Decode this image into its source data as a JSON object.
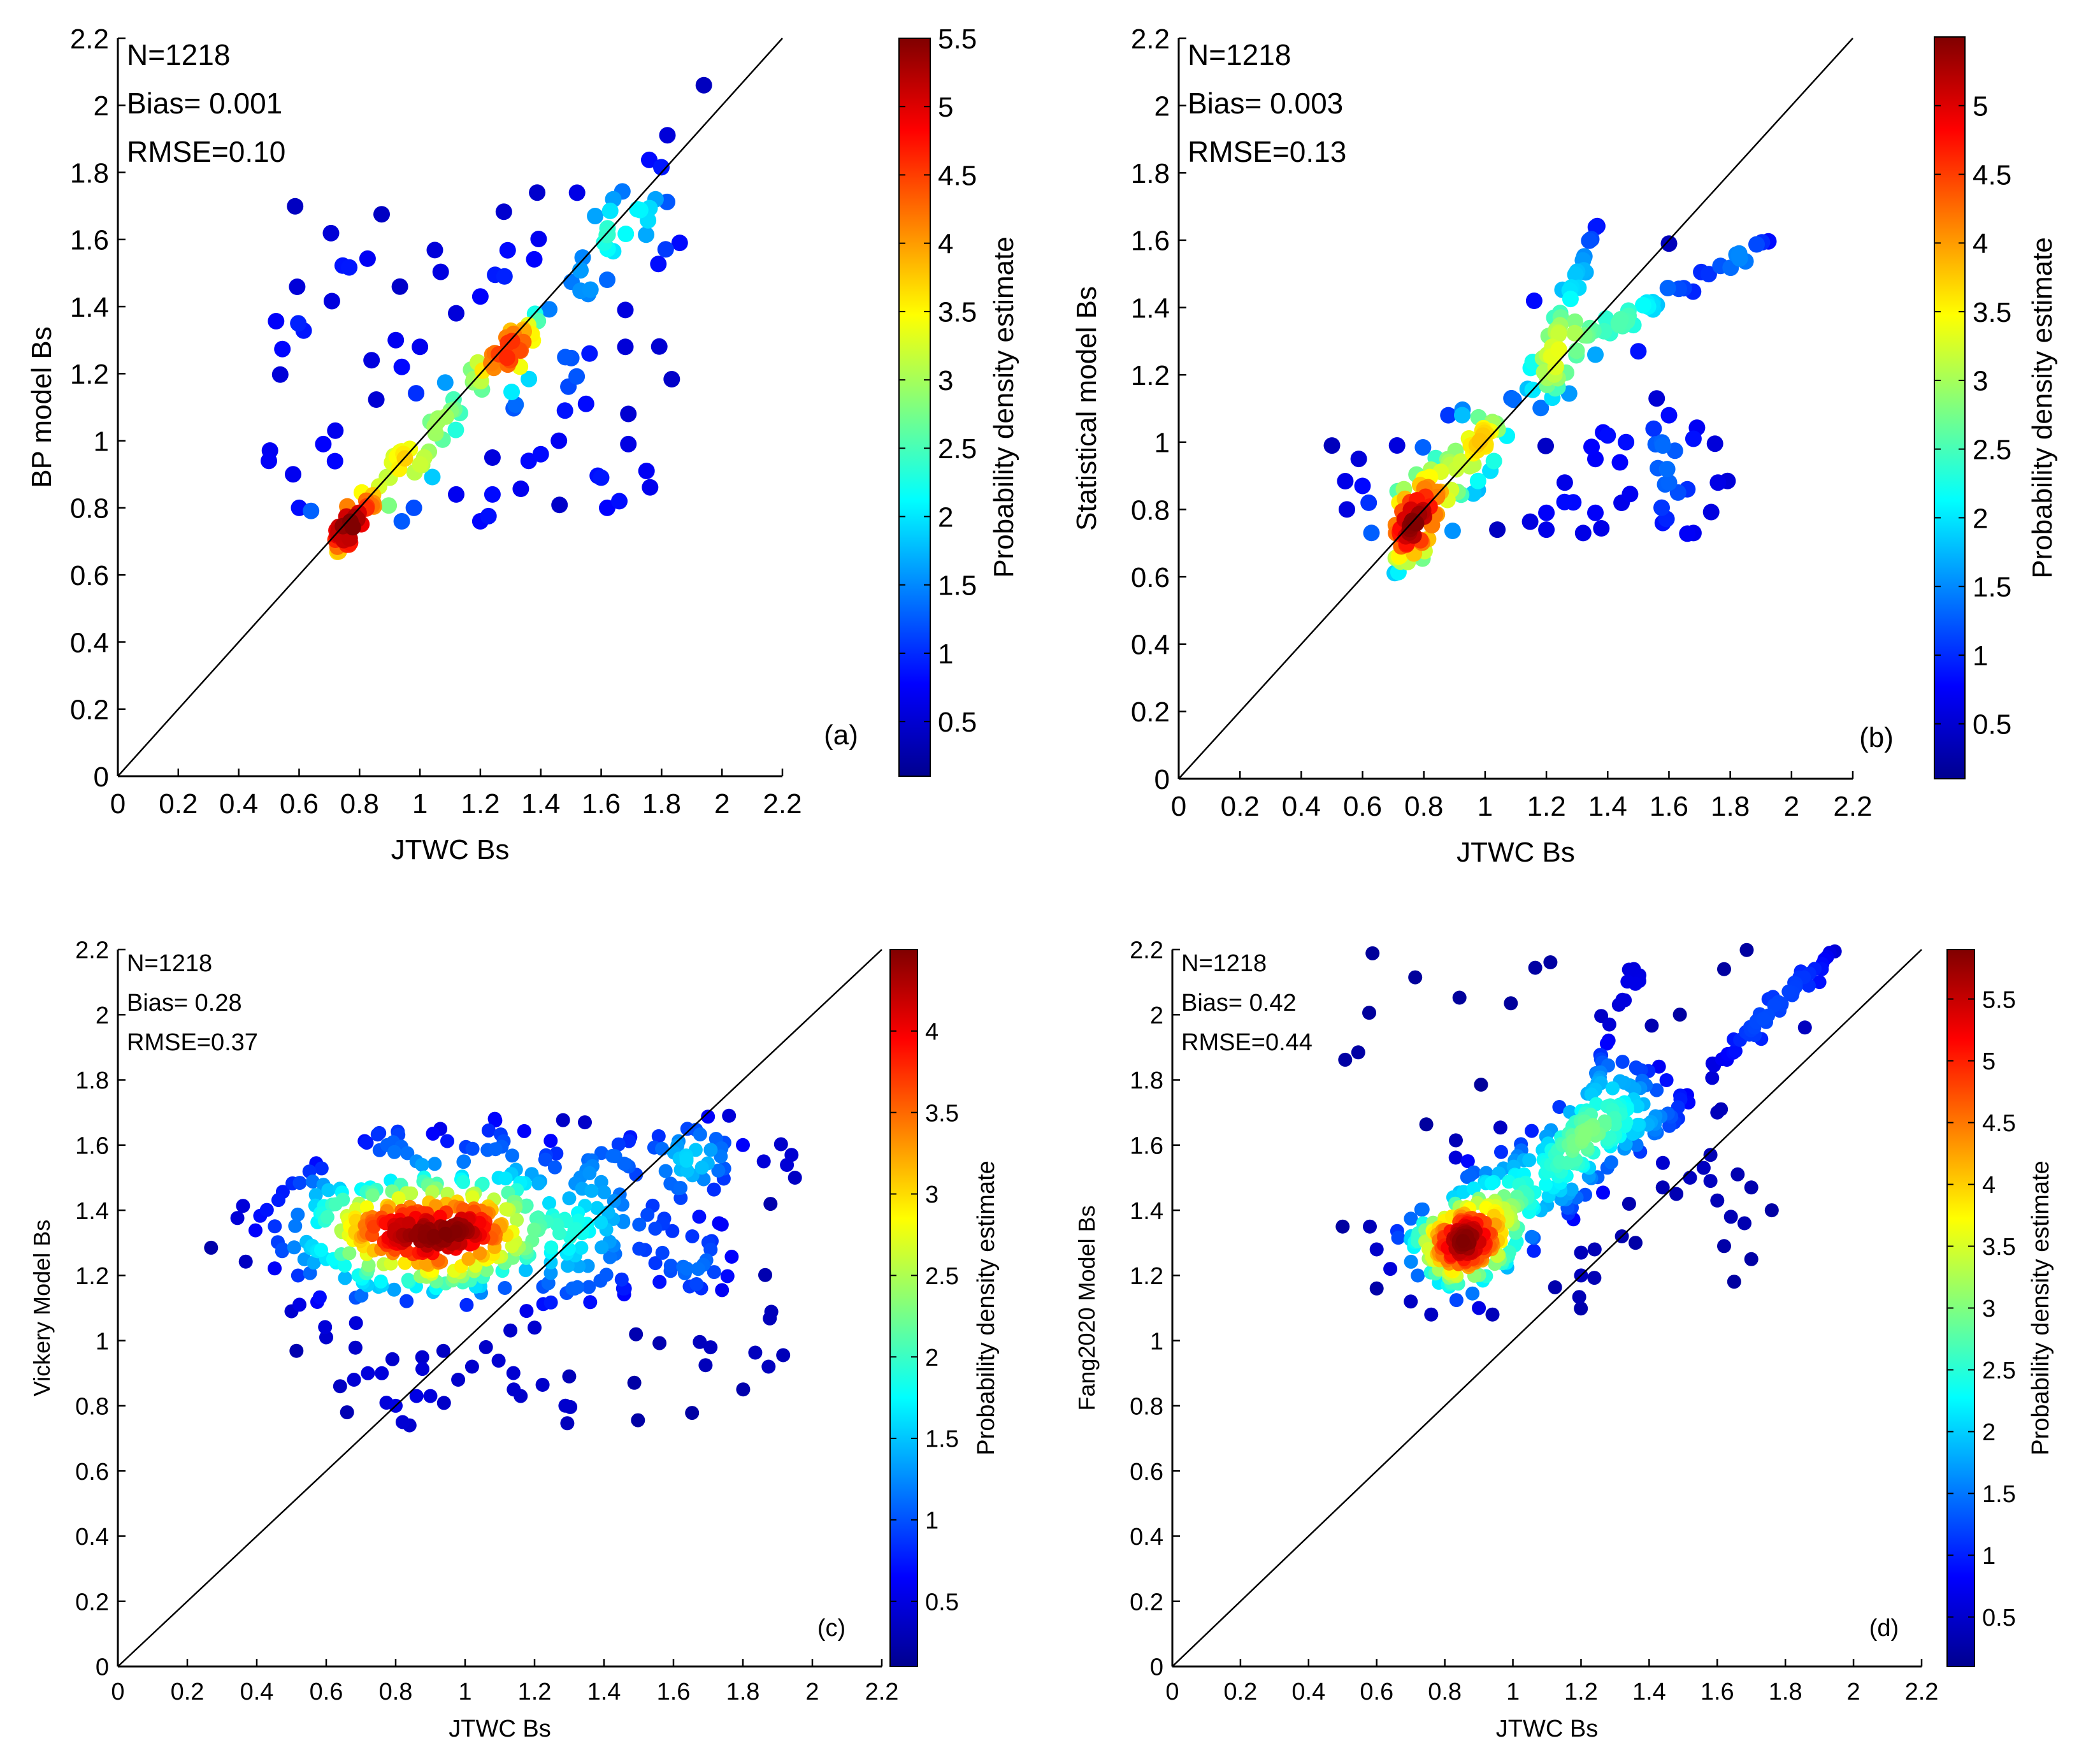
{
  "chart_data": [
    {
      "panel": "(a)",
      "type": "scatter",
      "title": "",
      "xlabel": "JTWC Bs",
      "ylabel": "BP model Bs",
      "xlim": [
        0,
        2.2
      ],
      "ylim": [
        0,
        2.2
      ],
      "xticks": [
        "0",
        "0.2",
        "0.4",
        "0.6",
        "0.8",
        "1",
        "1.2",
        "1.4",
        "1.6",
        "1.8",
        "2",
        "2.2"
      ],
      "yticks": [
        "0",
        "0.2",
        "0.4",
        "0.6",
        "0.8",
        "1",
        "1.2",
        "1.4",
        "1.6",
        "1.8",
        "2",
        "2.2"
      ],
      "annotations": [
        "N=1218",
        "Bias= 0.001",
        "RMSE=0.10"
      ],
      "colorbar": {
        "label": "Probability density estimate",
        "range": [
          0.1,
          5.5
        ],
        "ticks": [
          "0.5",
          "1",
          "1.5",
          "2",
          "2.5",
          "3",
          "3.5",
          "4",
          "4.5",
          "5",
          "5.5"
        ]
      },
      "grid": false,
      "reference_line": "y = x",
      "pattern": {
        "core": {
          "x0": 0.72,
          "x1": 1.42,
          "slope": 0.98,
          "offset": 0.04,
          "spread": 0.025,
          "n": 90
        },
        "tail": {
          "x0": 1.42,
          "x1": 1.84,
          "slope": 0.98,
          "offset": 0.05,
          "spread": 0.05,
          "n": 20
        },
        "scatter": {
          "xlim": [
            0.5,
            1.85
          ],
          "ylim": [
            0.75,
            1.75
          ],
          "n": 55
        }
      },
      "outliers": [
        [
          0.5,
          0.94
        ],
        [
          0.58,
          0.9
        ],
        [
          0.6,
          0.8
        ],
        [
          0.68,
          0.99
        ],
        [
          0.72,
          1.03
        ],
        [
          0.84,
          1.24
        ],
        [
          0.92,
          1.3
        ],
        [
          0.94,
          1.22
        ],
        [
          1.0,
          1.28
        ],
        [
          1.12,
          1.38
        ],
        [
          1.2,
          1.43
        ],
        [
          1.28,
          1.49
        ],
        [
          1.12,
          0.84
        ],
        [
          1.2,
          0.76
        ],
        [
          1.24,
          0.95
        ],
        [
          1.24,
          0.84
        ],
        [
          1.36,
          0.94
        ],
        [
          1.4,
          0.96
        ],
        [
          1.46,
          1.0
        ],
        [
          1.48,
          1.09
        ],
        [
          1.55,
          1.11
        ],
        [
          1.6,
          0.89
        ],
        [
          1.62,
          0.8
        ],
        [
          1.66,
          0.82
        ],
        [
          1.69,
          0.99
        ],
        [
          1.69,
          1.08
        ],
        [
          1.75,
          0.91
        ],
        [
          1.68,
          1.28
        ],
        [
          1.68,
          1.39
        ],
        [
          1.62,
          1.48
        ],
        [
          1.58,
          1.67
        ],
        [
          1.64,
          1.72
        ],
        [
          1.72,
          1.69
        ],
        [
          1.78,
          1.72
        ],
        [
          1.86,
          1.59
        ],
        [
          1.94,
          2.06
        ],
        [
          0.94,
          0.76
        ],
        [
          0.98,
          0.8
        ]
      ],
      "point_count": 1218,
      "bias": 0.001,
      "rmse": 0.1
    },
    {
      "panel": "(b)",
      "type": "scatter",
      "title": "",
      "xlabel": "JTWC Bs",
      "ylabel": "Statistical model Bs",
      "xlim": [
        0,
        2.2
      ],
      "ylim": [
        0,
        2.2
      ],
      "xticks": [
        "0",
        "0.2",
        "0.4",
        "0.6",
        "0.8",
        "1",
        "1.2",
        "1.4",
        "1.6",
        "1.8",
        "2",
        "2.2"
      ],
      "yticks": [
        "0",
        "0.2",
        "0.4",
        "0.6",
        "0.8",
        "1",
        "1.2",
        "1.4",
        "1.6",
        "1.8",
        "2",
        "2.2"
      ],
      "annotations": [
        "N=1218",
        "Bias= 0.003",
        "RMSE=0.13"
      ],
      "colorbar": {
        "label": "Probability density estimate",
        "range": [
          0.1,
          5.5
        ],
        "ticks": [
          "0.5",
          "1",
          "1.5",
          "2",
          "2.5",
          "3",
          "3.5",
          "4",
          "4.5",
          "5"
        ]
      },
      "grid": false,
      "reference_line": "y = x",
      "pattern": {
        "core": {
          "x0": 0.7,
          "x1": 1.3,
          "slope": 1.0,
          "offset": 0.05,
          "spread": 0.05,
          "n": 120
        },
        "branch_upper": {
          "x0": 1.2,
          "x1": 1.37,
          "y0": 1.28,
          "y1": 1.63,
          "n": 25
        },
        "branch_lower": {
          "x0": 1.3,
          "x1": 1.95,
          "y0": 1.3,
          "y1": 1.6,
          "n": 40
        },
        "scatter": {
          "xlim": [
            0.5,
            1.8
          ],
          "ylim": [
            0.72,
            1.1
          ],
          "n": 40
        }
      },
      "outliers": [
        [
          0.5,
          0.99
        ],
        [
          0.6,
          0.87
        ],
        [
          0.62,
          0.82
        ],
        [
          0.72,
          0.82
        ],
        [
          0.88,
          1.08
        ],
        [
          1.04,
          0.74
        ],
        [
          1.16,
          1.42
        ],
        [
          1.2,
          0.74
        ],
        [
          1.2,
          0.79
        ],
        [
          1.26,
          0.88
        ],
        [
          1.32,
          0.73
        ],
        [
          1.36,
          0.79
        ],
        [
          1.36,
          0.95
        ],
        [
          1.4,
          1.02
        ],
        [
          1.44,
          0.94
        ],
        [
          1.46,
          1.0
        ],
        [
          1.55,
          1.04
        ],
        [
          1.56,
          1.13
        ],
        [
          1.58,
          0.99
        ],
        [
          1.58,
          0.76
        ],
        [
          1.6,
          1.08
        ],
        [
          1.6,
          0.88
        ],
        [
          1.66,
          0.86
        ],
        [
          1.68,
          0.73
        ],
        [
          1.68,
          1.01
        ],
        [
          1.76,
          0.88
        ],
        [
          1.6,
          1.59
        ],
        [
          1.5,
          1.27
        ],
        [
          1.36,
          1.26
        ]
      ],
      "point_count": 1218,
      "bias": 0.003,
      "rmse": 0.13
    },
    {
      "panel": "(c)",
      "type": "scatter",
      "title": "",
      "xlabel": "JTWC Bs",
      "ylabel": "Vickery Model Bs",
      "xlim": [
        0,
        2.2
      ],
      "ylim": [
        0,
        2.2
      ],
      "xticks": [
        "0",
        "0.2",
        "0.4",
        "0.6",
        "0.8",
        "1",
        "1.2",
        "1.4",
        "1.6",
        "1.8",
        "2",
        "2.2"
      ],
      "yticks": [
        "0",
        "0.2",
        "0.4",
        "0.6",
        "0.8",
        "1",
        "1.2",
        "1.4",
        "1.6",
        "1.8",
        "2",
        "2.2"
      ],
      "annotations": [
        "N=1218",
        "Bias= 0.28",
        "RMSE=0.37"
      ],
      "colorbar": {
        "label": "Probability density estimate",
        "range": [
          0.1,
          4.5
        ],
        "ticks": [
          "0.5",
          "1",
          "1.5",
          "2",
          "2.5",
          "3",
          "3.5",
          "4"
        ]
      },
      "grid": false,
      "reference_line": "y = x",
      "pattern": {
        "blob": {
          "cx": 0.88,
          "cy": 1.35,
          "sx": 0.22,
          "sy": 0.08,
          "n": 260
        },
        "broad": {
          "xlim": [
            0.7,
            1.75
          ],
          "ylim": [
            1.15,
            1.65
          ],
          "n": 220
        },
        "scatter": {
          "xlim": [
            0.5,
            1.95
          ],
          "ylim": [
            0.73,
            1.7
          ],
          "n": 90
        }
      },
      "outliers": [
        [
          0.5,
          1.09
        ],
        [
          0.6,
          1.25
        ],
        [
          0.62,
          1.25
        ],
        [
          0.6,
          1.01
        ],
        [
          0.64,
          0.86
        ],
        [
          0.66,
          0.78
        ],
        [
          0.68,
          0.88
        ],
        [
          0.72,
          0.9
        ],
        [
          0.76,
          0.9
        ],
        [
          0.8,
          0.8
        ],
        [
          0.82,
          0.75
        ],
        [
          0.86,
          0.83
        ],
        [
          0.84,
          0.74
        ],
        [
          0.9,
          0.83
        ],
        [
          0.98,
          0.88
        ],
        [
          1.02,
          0.92
        ],
        [
          1.06,
          0.98
        ],
        [
          1.14,
          0.85
        ],
        [
          1.16,
          0.83
        ],
        [
          1.2,
          1.04
        ],
        [
          1.46,
          1.16
        ],
        [
          1.56,
          1.18
        ],
        [
          1.64,
          1.65
        ],
        [
          1.8,
          1.6
        ],
        [
          1.86,
          1.55
        ],
        [
          1.94,
          1.57
        ],
        [
          1.95,
          1.5
        ],
        [
          1.76,
          1.69
        ]
      ],
      "point_count": 1218,
      "bias": 0.28,
      "rmse": 0.37
    },
    {
      "panel": "(d)",
      "type": "scatter",
      "title": "",
      "xlabel": "JTWC Bs",
      "ylabel": "Fang2020 Model Bs",
      "xlim": [
        0,
        2.2
      ],
      "ylim": [
        0,
        2.2
      ],
      "xticks": [
        "0",
        "0.2",
        "0.4",
        "0.6",
        "0.8",
        "1",
        "1.2",
        "1.4",
        "1.6",
        "1.8",
        "2",
        "2.2"
      ],
      "yticks": [
        "0",
        "0.2",
        "0.4",
        "0.6",
        "0.8",
        "1",
        "1.2",
        "1.4",
        "1.6",
        "1.8",
        "2",
        "2.2"
      ],
      "annotations": [
        "N=1218",
        "Bias= 0.42",
        "RMSE=0.44"
      ],
      "colorbar": {
        "label": "Probability density estimate",
        "range": [
          0.1,
          5.9
        ],
        "ticks": [
          "0.5",
          "1",
          "1.5",
          "2",
          "2.5",
          "3",
          "3.5",
          "4",
          "4.5",
          "5",
          "5.5"
        ]
      },
      "grid": false,
      "reference_line": "y = x",
      "pattern": {
        "blob": {
          "cx": 0.85,
          "cy": 1.3,
          "sx": 0.07,
          "sy": 0.06,
          "n": 160
        },
        "band": {
          "x0": 0.82,
          "x1": 1.4,
          "y0": 1.3,
          "y1": 1.75,
          "spread": 0.08,
          "n": 220
        },
        "branch_upper": {
          "x0": 1.18,
          "x1": 1.36,
          "y0": 1.6,
          "y1": 2.14,
          "n": 40
        },
        "branch_lower": {
          "x0": 1.35,
          "x1": 1.93,
          "y0": 1.58,
          "y1": 2.19,
          "n": 60
        },
        "scatter": {
          "xlim": [
            0.5,
            1.9
          ],
          "ylim": [
            1.08,
            2.2
          ],
          "n": 40
        }
      },
      "outliers": [
        [
          0.5,
          1.35
        ],
        [
          0.58,
          1.35
        ],
        [
          0.6,
          1.28
        ],
        [
          0.6,
          1.16
        ],
        [
          0.64,
          1.22
        ],
        [
          0.7,
          1.12
        ],
        [
          0.76,
          1.08
        ],
        [
          0.9,
          1.1
        ],
        [
          0.94,
          1.08
        ],
        [
          1.2,
          1.2
        ],
        [
          1.2,
          1.27
        ],
        [
          1.24,
          1.28
        ],
        [
          1.32,
          1.32
        ],
        [
          1.36,
          1.3
        ],
        [
          1.44,
          1.47
        ],
        [
          1.48,
          1.45
        ],
        [
          1.52,
          1.5
        ],
        [
          1.56,
          1.53
        ],
        [
          1.58,
          1.49
        ],
        [
          1.6,
          1.43
        ],
        [
          1.62,
          1.29
        ],
        [
          1.64,
          1.38
        ],
        [
          1.66,
          1.51
        ],
        [
          1.68,
          1.36
        ],
        [
          1.7,
          1.47
        ],
        [
          1.7,
          1.25
        ],
        [
          1.76,
          1.4
        ],
        [
          1.58,
          1.57
        ],
        [
          1.6,
          1.7
        ],
        [
          1.62,
          2.14
        ],
        [
          1.82,
          2.06
        ],
        [
          1.9,
          2.1
        ],
        [
          1.93,
          2.19
        ]
      ],
      "point_count": 1218,
      "bias": 0.42,
      "rmse": 0.44
    }
  ]
}
